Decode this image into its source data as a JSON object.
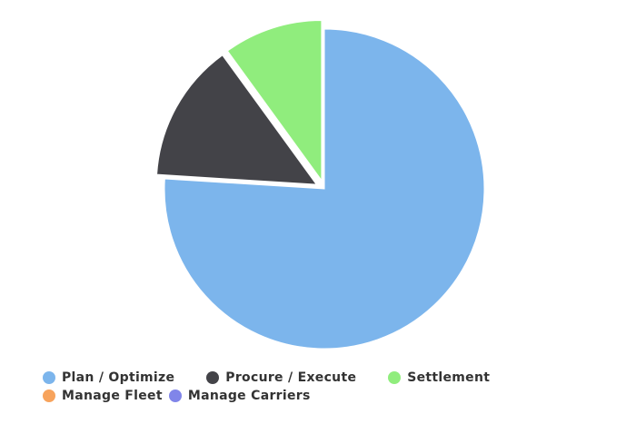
{
  "chart_data": {
    "type": "pie",
    "series": [
      {
        "name": "Plan / Optimize",
        "value": 76,
        "color": "#7cb5ec",
        "sliced": false
      },
      {
        "name": "Procure / Execute",
        "value": 14,
        "color": "#434348",
        "sliced": true
      },
      {
        "name": "Settlement",
        "value": 10,
        "color": "#90ed7d",
        "sliced": true
      },
      {
        "name": "Manage Fleet",
        "value": 0,
        "color": "#f7a35c",
        "sliced": false
      },
      {
        "name": "Manage Carriers",
        "value": 0,
        "color": "#8085e9",
        "sliced": false
      }
    ],
    "legend_position": "bottom"
  }
}
